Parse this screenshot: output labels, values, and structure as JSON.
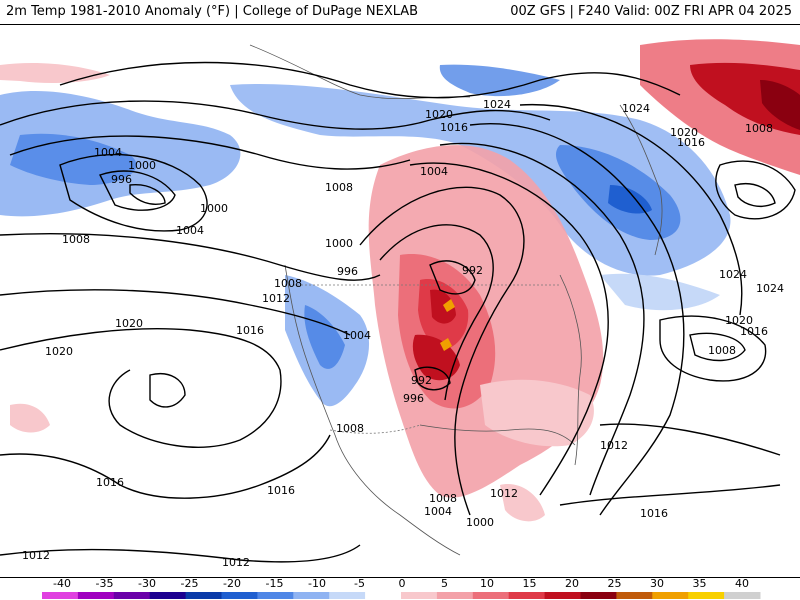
{
  "header": {
    "left_title": "2m Temp 1981-2010 Anomaly (°F) | College of DuPage NEXLAB",
    "right_title": "00Z GFS | F240 Valid: 00Z FRI APR 04 2025"
  },
  "map": {
    "field": "2m temperature anomaly",
    "contours": "mean sea level pressure isobars (mb)",
    "highs_and_lows": [
      {
        "label": "1024"
      },
      {
        "label": "1020"
      },
      {
        "label": "1016"
      },
      {
        "label": "1004"
      },
      {
        "label": "1000"
      },
      {
        "label": "996"
      },
      {
        "label": "992"
      },
      {
        "label": "1008"
      },
      {
        "label": "1012"
      }
    ],
    "isobar_labels": [
      "1004",
      "1000",
      "996",
      "1000",
      "1004",
      "1008",
      "1020",
      "1016",
      "1024",
      "1008",
      "1004",
      "1000",
      "996",
      "992",
      "1008",
      "1012",
      "1004",
      "992",
      "996",
      "1008",
      "1020",
      "1016",
      "1020",
      "1016",
      "1016",
      "1012",
      "1008",
      "1004",
      "1000",
      "1012",
      "1012",
      "1024",
      "1020",
      "1016",
      "1008",
      "1012",
      "1024",
      "1016",
      "1020",
      "1008",
      "1016",
      "1024"
    ]
  },
  "colorbar": {
    "ticks": [
      "-40",
      "-35",
      "-30",
      "-25",
      "-20",
      "-15",
      "-10",
      "-5",
      "0",
      "5",
      "10",
      "15",
      "20",
      "25",
      "30",
      "35",
      "40"
    ],
    "colors": [
      "#e040e0",
      "#a000c0",
      "#6a00a8",
      "#1c0090",
      "#0a3aa8",
      "#1f5fd0",
      "#4f86e6",
      "#8fb3f2",
      "#c6d9f8",
      "#ffffff",
      "#f8c8cc",
      "#f3a1a8",
      "#ec6f7a",
      "#df3a48",
      "#c0101f",
      "#8a0010",
      "#c05a0a",
      "#f0a000",
      "#f8d000",
      "#d0d0d0"
    ]
  }
}
